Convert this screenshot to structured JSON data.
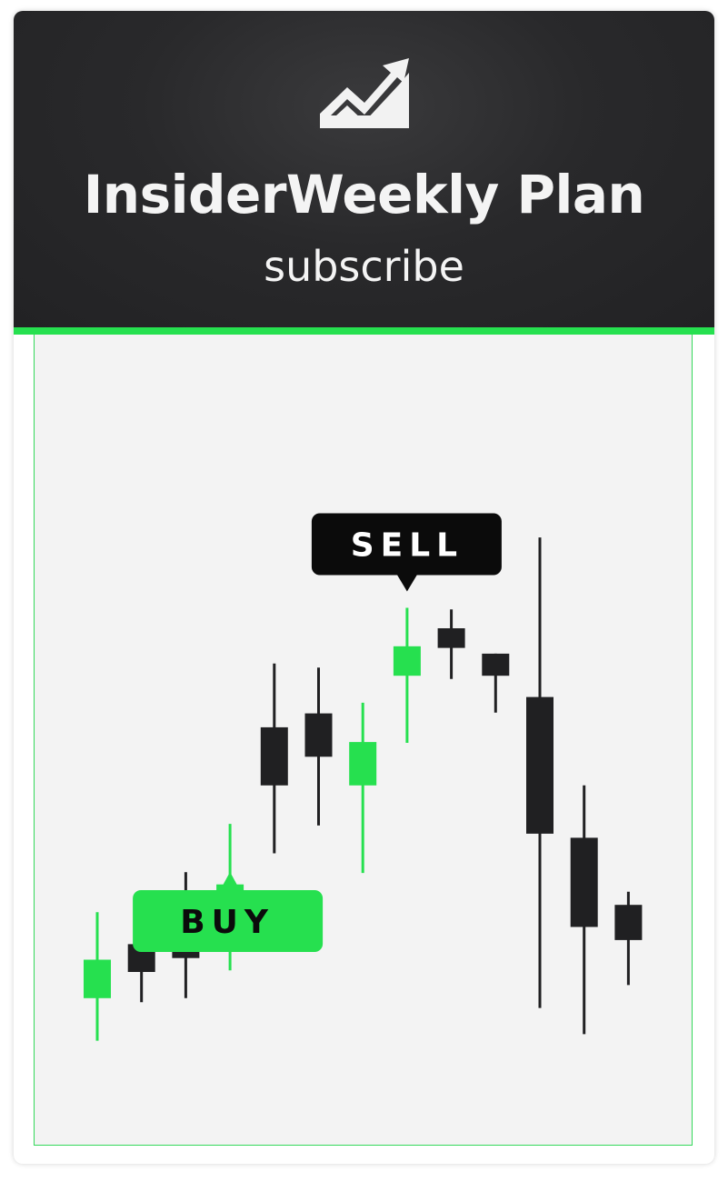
{
  "header": {
    "logo_icon": "trending-up-chart-icon",
    "title": "InsiderWeekly Plan",
    "subtitle": "subscribe"
  },
  "colors": {
    "header_bg": "#29292b",
    "accent_green": "#26e04f",
    "candle_dark": "#202022",
    "chart_bg": "#f3f3f3",
    "title_text": "#f4f4f4"
  },
  "chart": {
    "buy_label": "BUY",
    "sell_label": "SELL"
  },
  "chart_data": {
    "type": "candlestick",
    "title": "",
    "xlabel": "",
    "ylabel": "",
    "grid": false,
    "ylim": [
      0,
      100
    ],
    "candles": [
      {
        "high": 34.3,
        "open": 28.5,
        "close": 23.8,
        "low": 18.6,
        "direction": "up"
      },
      {
        "high": 34.8,
        "open": 30.4,
        "close": 27.0,
        "low": 23.3,
        "direction": "down"
      },
      {
        "high": 39.2,
        "open": 33.3,
        "close": 28.7,
        "low": 23.8,
        "direction": "down"
      },
      {
        "high": 45.1,
        "open": 37.7,
        "close": 32.5,
        "low": 27.2,
        "direction": "up"
      },
      {
        "high": 64.7,
        "open": 56.9,
        "close": 49.8,
        "low": 41.5,
        "direction": "down"
      },
      {
        "high": 64.2,
        "open": 58.6,
        "close": 53.3,
        "low": 44.9,
        "direction": "down"
      },
      {
        "high": 59.9,
        "open": 55.1,
        "close": 49.8,
        "low": 39.1,
        "direction": "up"
      },
      {
        "high": 71.5,
        "open": 66.8,
        "close": 63.2,
        "low": 55.0,
        "direction": "up"
      },
      {
        "high": 71.3,
        "open": 69.0,
        "close": 66.6,
        "low": 62.8,
        "direction": "down"
      },
      {
        "high": 65.9,
        "open": 65.9,
        "close": 63.2,
        "low": 58.7,
        "direction": "down"
      },
      {
        "high": 80.1,
        "open": 60.6,
        "close": 43.9,
        "low": 22.6,
        "direction": "down"
      },
      {
        "high": 49.8,
        "open": 43.4,
        "close": 32.5,
        "low": 19.4,
        "direction": "down"
      },
      {
        "high": 36.8,
        "open": 35.2,
        "close": 30.9,
        "low": 25.4,
        "direction": "down"
      }
    ],
    "annotations": [
      {
        "text": "BUY",
        "candle_index": 3,
        "position": "below"
      },
      {
        "text": "SELL",
        "candle_index": 7,
        "position": "above"
      }
    ]
  }
}
